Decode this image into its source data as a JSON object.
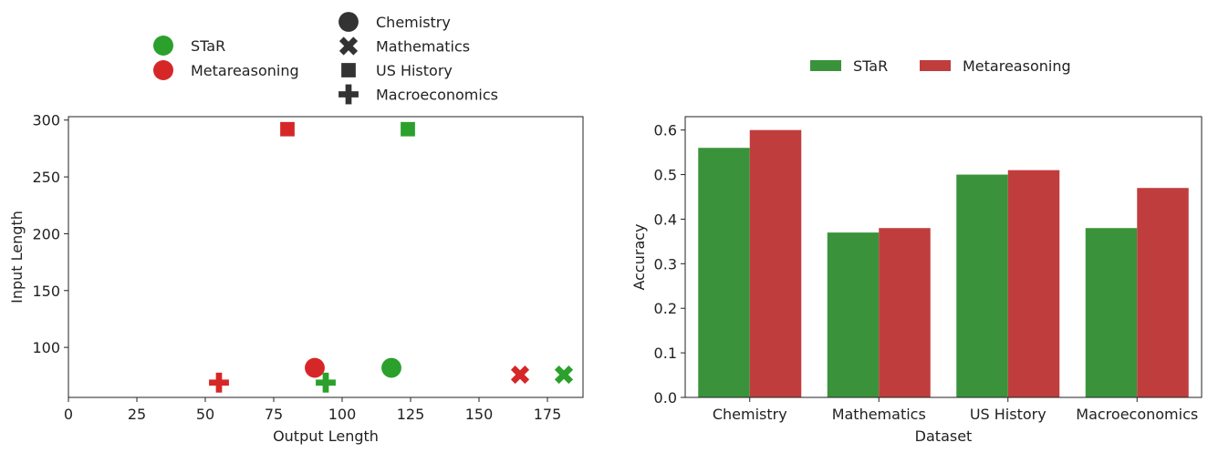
{
  "colors": {
    "star": "#2ca02c",
    "metareasoning": "#d62728",
    "star_bar": "#3a933a",
    "metareasoning_bar": "#c03d3e",
    "marker_key": "#333333"
  },
  "chart_data": [
    {
      "type": "scatter",
      "xlabel": "Output Length",
      "ylabel": "Input Length",
      "xlim": [
        0,
        188
      ],
      "ylim": [
        56,
        303
      ],
      "xticks": [
        0,
        25,
        50,
        75,
        100,
        125,
        150,
        175
      ],
      "yticks": [
        100,
        150,
        200,
        250,
        300
      ],
      "legend_methods": [
        {
          "name": "STaR",
          "color": "#2ca02c"
        },
        {
          "name": "Metareasoning",
          "color": "#d62728"
        }
      ],
      "legend_datasets": [
        {
          "name": "Chemistry",
          "marker": "circle"
        },
        {
          "name": "Mathematics",
          "marker": "x"
        },
        {
          "name": "US History",
          "marker": "square"
        },
        {
          "name": "Macroeconomics",
          "marker": "plus"
        }
      ],
      "points": [
        {
          "method": "STaR",
          "dataset": "Chemistry",
          "x": 118,
          "y": 82
        },
        {
          "method": "Metareasoning",
          "dataset": "Chemistry",
          "x": 90,
          "y": 82
        },
        {
          "method": "STaR",
          "dataset": "Mathematics",
          "x": 181,
          "y": 76
        },
        {
          "method": "Metareasoning",
          "dataset": "Mathematics",
          "x": 165,
          "y": 76
        },
        {
          "method": "STaR",
          "dataset": "US History",
          "x": 124,
          "y": 292
        },
        {
          "method": "Metareasoning",
          "dataset": "US History",
          "x": 80,
          "y": 292
        },
        {
          "method": "STaR",
          "dataset": "Macroeconomics",
          "x": 94,
          "y": 69
        },
        {
          "method": "Metareasoning",
          "dataset": "Macroeconomics",
          "x": 55,
          "y": 69
        }
      ]
    },
    {
      "type": "bar",
      "xlabel": "Dataset",
      "ylabel": "Accuracy",
      "ylim": [
        0,
        0.63
      ],
      "yticks": [
        0.0,
        0.1,
        0.2,
        0.3,
        0.4,
        0.5,
        0.6
      ],
      "ytick_labels": [
        "0.0",
        "0.1",
        "0.2",
        "0.3",
        "0.4",
        "0.5",
        "0.6"
      ],
      "categories": [
        "Chemistry",
        "Mathematics",
        "US History",
        "Macroeconomics"
      ],
      "series": [
        {
          "name": "STaR",
          "values": [
            0.56,
            0.37,
            0.5,
            0.38
          ]
        },
        {
          "name": "Metareasoning",
          "values": [
            0.6,
            0.38,
            0.51,
            0.47
          ]
        }
      ]
    }
  ]
}
